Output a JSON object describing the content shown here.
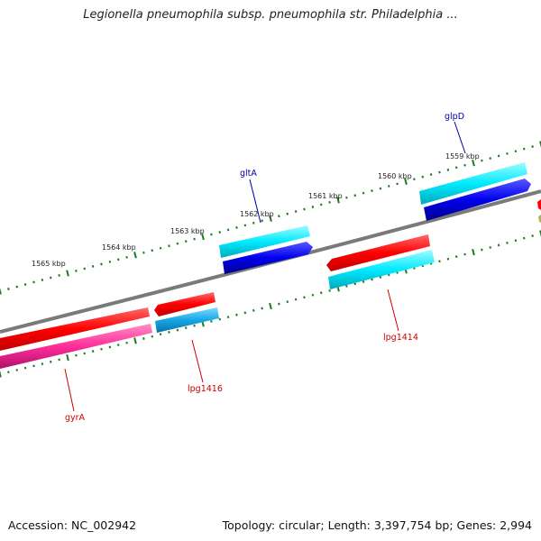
{
  "title": "Legionella pneumophila subsp. pneumophila str. Philadelphia ...",
  "footer": {
    "accession": "Accession: NC_002942",
    "summary": "Topology: circular; Length: 3,397,754 bp; Genes: 2,994"
  },
  "kbp_labels": [
    "1565 kbp",
    "1564 kbp",
    "1563 kbp",
    "1562 kbp",
    "1561 kbp",
    "1560 kbp",
    "1559 kbp"
  ],
  "genes": [
    {
      "name": "gyrA",
      "color": "#cc0000"
    },
    {
      "name": "lpg1416",
      "color": "#cc0000"
    },
    {
      "name": "gltA",
      "color": "#0000aa"
    },
    {
      "name": "lpg1414",
      "color": "#cc0000"
    },
    {
      "name": "glpD",
      "color": "#0000aa"
    }
  ],
  "colors": {
    "backbone": "#808080",
    "ticks": "#1e7a1e",
    "red_cds": "#ff0000",
    "pink_cds": "#ff3399",
    "cyan_cds": "#00e5ff",
    "sky_cds": "#1aaee8",
    "blue_cds": "#0000ee"
  }
}
